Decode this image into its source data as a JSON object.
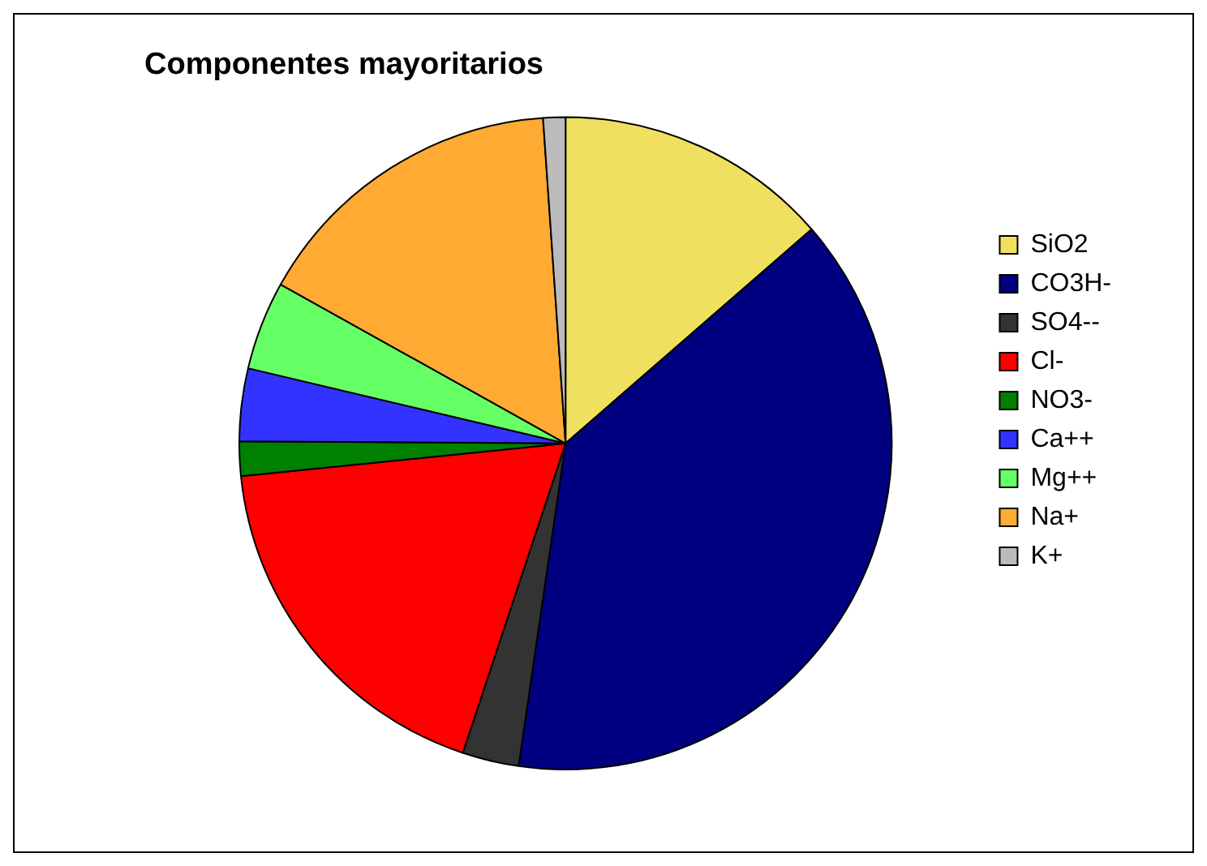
{
  "chart_data": {
    "type": "pie",
    "title": "Componentes mayoritarios",
    "categories": [
      "SiO2",
      "CO3H-",
      "SO4--",
      "Cl-",
      "NO3-",
      "Ca++",
      "Mg++",
      "Na+",
      "K+"
    ],
    "values": [
      13.6,
      38.7,
      2.8,
      18.3,
      1.7,
      3.6,
      4.4,
      15.8,
      1.1
    ],
    "colors": [
      "#f0e060",
      "#000080",
      "#333333",
      "#ff0000",
      "#008000",
      "#3333ff",
      "#66ff66",
      "#ffaa33",
      "#bbbbbb"
    ],
    "legend": "right"
  }
}
